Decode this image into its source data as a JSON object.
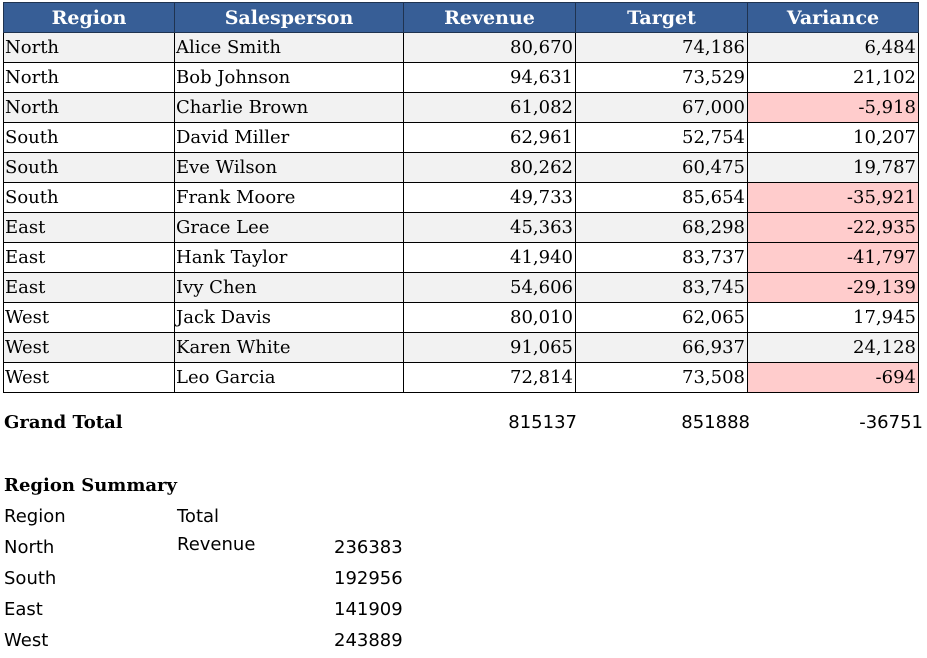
{
  "table": {
    "headers": [
      "Region",
      "Salesperson",
      "Revenue",
      "Target",
      "Variance"
    ],
    "rows": [
      {
        "region": "North",
        "salesperson": "Alice Smith",
        "revenue": "80,670",
        "target": "74,186",
        "variance": "6,484",
        "negative": false
      },
      {
        "region": "North",
        "salesperson": "Bob Johnson",
        "revenue": "94,631",
        "target": "73,529",
        "variance": "21,102",
        "negative": false
      },
      {
        "region": "North",
        "salesperson": "Charlie Brown",
        "revenue": "61,082",
        "target": "67,000",
        "variance": "-5,918",
        "negative": true
      },
      {
        "region": "South",
        "salesperson": "David Miller",
        "revenue": "62,961",
        "target": "52,754",
        "variance": "10,207",
        "negative": false
      },
      {
        "region": "South",
        "salesperson": "Eve Wilson",
        "revenue": "80,262",
        "target": "60,475",
        "variance": "19,787",
        "negative": false
      },
      {
        "region": "South",
        "salesperson": "Frank Moore",
        "revenue": "49,733",
        "target": "85,654",
        "variance": "-35,921",
        "negative": true
      },
      {
        "region": "East",
        "salesperson": "Grace Lee",
        "revenue": "45,363",
        "target": "68,298",
        "variance": "-22,935",
        "negative": true
      },
      {
        "region": "East",
        "salesperson": "Hank Taylor",
        "revenue": "41,940",
        "target": "83,737",
        "variance": "-41,797",
        "negative": true
      },
      {
        "region": "East",
        "salesperson": "Ivy Chen",
        "revenue": "54,606",
        "target": "83,745",
        "variance": "-29,139",
        "negative": true
      },
      {
        "region": "West",
        "salesperson": "Jack Davis",
        "revenue": "80,010",
        "target": "62,065",
        "variance": "17,945",
        "negative": false
      },
      {
        "region": "West",
        "salesperson": "Karen White",
        "revenue": "91,065",
        "target": "66,937",
        "variance": "24,128",
        "negative": false
      },
      {
        "region": "West",
        "salesperson": "Leo Garcia",
        "revenue": "72,814",
        "target": "73,508",
        "variance": "-694",
        "negative": true
      }
    ]
  },
  "grand_total": {
    "label": "Grand Total",
    "revenue": "815137",
    "target": "851888",
    "variance": "-36751"
  },
  "summary": {
    "title": "Region Summary",
    "col1": "Region",
    "col2": "Total Revenue",
    "rows": [
      {
        "region": "North",
        "total": "236383"
      },
      {
        "region": "South",
        "total": "192956"
      },
      {
        "region": "East",
        "total": "141909"
      },
      {
        "region": "West",
        "total": "243889"
      }
    ]
  },
  "colors": {
    "header_bg": "#375e96",
    "negative_bg": "#ffcccc",
    "alt_row_bg": "#f2f2f2"
  }
}
